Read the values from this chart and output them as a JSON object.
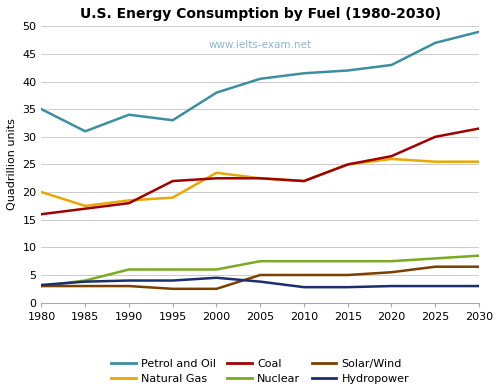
{
  "title": "U.S. Energy Consumption by Fuel (1980-2030)",
  "watermark": "www.ielts-exam.net",
  "ylabel": "Quadrillion units",
  "years": [
    1980,
    1985,
    1990,
    1995,
    2000,
    2005,
    2010,
    2015,
    2020,
    2025,
    2030
  ],
  "series": [
    {
      "name": "Petrol and Oil",
      "values": [
        35.0,
        31.0,
        34.0,
        33.0,
        38.0,
        40.5,
        41.5,
        42.0,
        43.0,
        47.0,
        49.0
      ],
      "color": "#3A8FA0"
    },
    {
      "name": "Natural Gas",
      "values": [
        20.0,
        17.5,
        18.5,
        19.0,
        23.5,
        22.5,
        22.0,
        25.0,
        26.0,
        25.5,
        25.5
      ],
      "color": "#E8A800"
    },
    {
      "name": "Coal",
      "values": [
        16.0,
        17.0,
        18.0,
        22.0,
        22.5,
        22.5,
        22.0,
        25.0,
        26.5,
        30.0,
        31.5
      ],
      "color": "#A00000"
    },
    {
      "name": "Nuclear",
      "values": [
        3.0,
        4.0,
        6.0,
        6.0,
        6.0,
        7.5,
        7.5,
        7.5,
        7.5,
        8.0,
        8.5
      ],
      "color": "#7AAA20"
    },
    {
      "name": "Solar/Wind",
      "values": [
        3.0,
        3.0,
        3.0,
        2.5,
        2.5,
        5.0,
        5.0,
        5.0,
        5.5,
        6.5,
        6.5
      ],
      "color": "#7B4000"
    },
    {
      "name": "Hydropower",
      "values": [
        3.2,
        3.8,
        4.0,
        4.0,
        4.5,
        3.8,
        2.8,
        2.8,
        3.0,
        3.0,
        3.0
      ],
      "color": "#1C2E6E"
    }
  ],
  "ylim": [
    0,
    50
  ],
  "yticks": [
    0,
    5,
    10,
    15,
    20,
    25,
    30,
    35,
    40,
    45,
    50
  ],
  "background_color": "#FFFFFF",
  "grid_color": "#CCCCCC",
  "watermark_color": "#7AAAC8"
}
